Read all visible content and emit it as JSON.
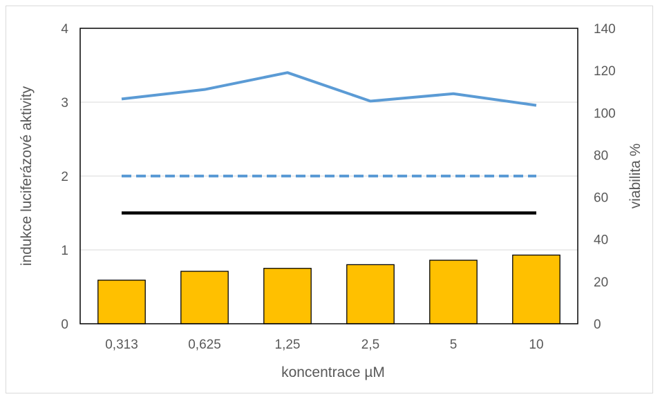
{
  "chart_data": {
    "type": "bar+line",
    "categories": [
      "0,313",
      "0,625",
      "1,25",
      "2,5",
      "5",
      "10"
    ],
    "bar_series": {
      "axis": "left",
      "color": "#FFC000",
      "values": [
        0.59,
        0.71,
        0.75,
        0.8,
        0.86,
        0.93
      ]
    },
    "line_series": [
      {
        "axis": "right",
        "color": "#5B9BD5",
        "style": "solid",
        "values": [
          106.5,
          111,
          119,
          105.5,
          109,
          103.5
        ]
      },
      {
        "axis": "left",
        "color": "#5B9BD5",
        "style": "dashed",
        "values": [
          2,
          2,
          2,
          2,
          2,
          2
        ]
      },
      {
        "axis": "left",
        "color": "#000000",
        "style": "solid",
        "values": [
          1.5,
          1.5,
          1.5,
          1.5,
          1.5,
          1.5
        ]
      }
    ],
    "xlabel": "koncentrace µM",
    "ylabel_left": "indukce luciferázové aktivity",
    "ylabel_right": "viabilita %",
    "ylim_left": [
      0,
      4
    ],
    "yticks_left": [
      "0",
      "1",
      "2",
      "3",
      "4"
    ],
    "ylim_right": [
      0,
      140
    ],
    "yticks_right": [
      "0",
      "20",
      "40",
      "60",
      "80",
      "100",
      "120",
      "140"
    ],
    "grid": true,
    "legend": "none"
  }
}
